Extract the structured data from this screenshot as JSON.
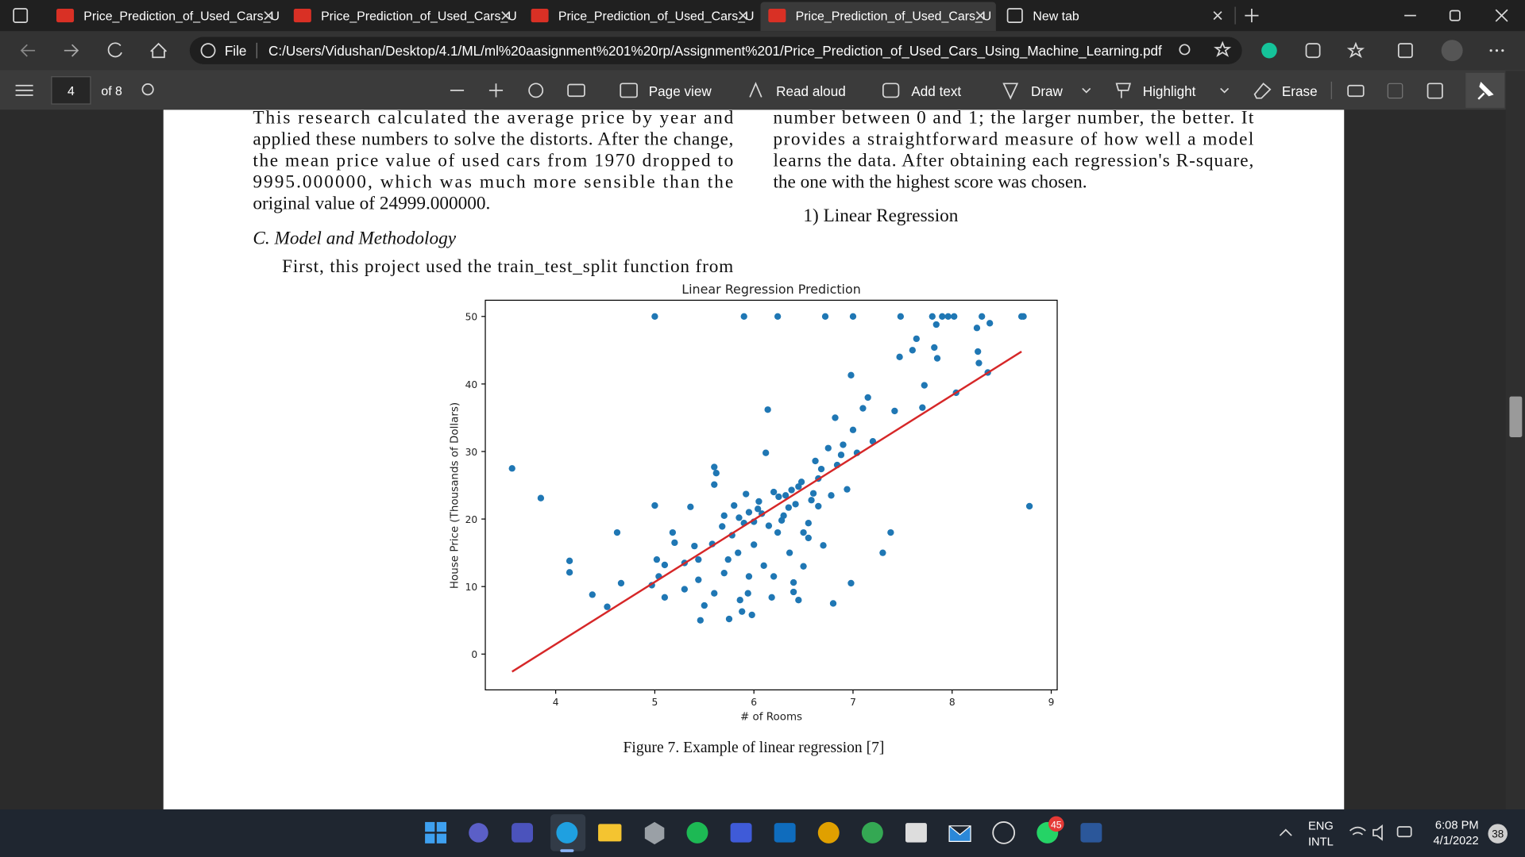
{
  "tabs": [
    {
      "title": "Price_Prediction_of_Used_Cars_U"
    },
    {
      "title": "Price_Prediction_of_Used_Cars_U"
    },
    {
      "title": "Price_Prediction_of_Used_Cars_U"
    },
    {
      "title": "Price_Prediction_of_Used_Cars_U"
    },
    {
      "title": "New tab"
    }
  ],
  "address_bar": {
    "scheme": "File",
    "url": "C:/Users/Vidushan/Desktop/4.1/ML/ml%20aasignment%201%20rp/Assignment%201/Price_Prediction_of_Used_Cars_Using_Machine_Learning.pdf"
  },
  "pdf_toolbar": {
    "page": "4",
    "page_count": "of 8",
    "buttons": [
      "Page view",
      "Read aloud",
      "Add text",
      "Draw",
      "Highlight",
      "Erase"
    ]
  },
  "document": {
    "left_column": {
      "lines": [
        "This research calculated the average price by year and",
        "applied these numbers to solve the distorts. After the change,",
        "the mean price value of used cars from 1970 dropped to",
        "9995.000000, which was much more sensible than the",
        "original value of 24999.000000."
      ],
      "heading": "C. Model and Methodology",
      "paragraph_start": "First, this project used the train_test_split function from"
    },
    "right_column": {
      "lines": [
        "number between 0 and 1; the larger number, the better. It",
        "provides a straightforward measure of how well a model",
        "learns the data. After obtaining each regression's R-square,",
        "the one with the highest score was chosen."
      ],
      "subheading": "1) Linear Regression"
    },
    "figure": {
      "chart": {
        "type": "scatter",
        "title": "Linear Regression Prediction",
        "x_label": "# of Rooms",
        "y_label": "House Price (Thousands of Dollars)",
        "color": "#1f77b4",
        "x": [
          3.56,
          3.85,
          4.14,
          4.14,
          4.37,
          4.52,
          4.62,
          4.66,
          4.97,
          5.0,
          5.04,
          5.02,
          5.1,
          5.0,
          5.1,
          5.2,
          5.18,
          5.3,
          5.3,
          5.4,
          5.44,
          5.36,
          5.44,
          5.5,
          5.46,
          5.58,
          5.6,
          5.62,
          5.6,
          5.6,
          5.68,
          5.7,
          5.7,
          5.74,
          5.75,
          5.8,
          5.84,
          5.86,
          5.88,
          5.9,
          5.9,
          5.92,
          5.94,
          5.95,
          5.98,
          6.0,
          6.0,
          6.04,
          6.1,
          6.12,
          6.14,
          6.18,
          6.2,
          6.2,
          6.24,
          6.24,
          6.3,
          6.32,
          6.36,
          6.4,
          6.4,
          6.42,
          6.45,
          6.48,
          6.5,
          6.5,
          6.55,
          6.6,
          6.62,
          6.65,
          6.7,
          6.72,
          6.75,
          6.78,
          6.8,
          6.82,
          6.84,
          6.9,
          6.94,
          6.98,
          6.98,
          7.0,
          7.0,
          7.04,
          7.1,
          7.15,
          7.2,
          7.3,
          7.38,
          7.42,
          7.48,
          7.47,
          7.6,
          7.64,
          7.7,
          7.72,
          7.8,
          7.82,
          7.84,
          7.85,
          7.9,
          7.96,
          8.02,
          8.04,
          8.25,
          8.26,
          8.27,
          8.3,
          8.36,
          8.38,
          8.7,
          8.72,
          8.78,
          5.85,
          5.95,
          6.05,
          6.15,
          6.25,
          6.35,
          6.45,
          6.55,
          6.65,
          5.78,
          6.08,
          6.28,
          6.38,
          6.58,
          6.68,
          6.88
        ],
        "values": [
          27.5,
          23.1,
          13.8,
          12.1,
          8.8,
          7.0,
          18.0,
          10.5,
          10.2,
          22.0,
          11.5,
          14.0,
          13.2,
          50.0,
          8.4,
          16.5,
          18.0,
          13.5,
          9.6,
          16.0,
          11.0,
          21.8,
          14.0,
          7.2,
          5.0,
          16.3,
          25.1,
          26.8,
          27.7,
          9.0,
          18.9,
          12.0,
          20.5,
          14.0,
          5.2,
          22.0,
          15.0,
          8.0,
          6.3,
          19.4,
          50.0,
          23.7,
          9.0,
          11.5,
          5.8,
          19.6,
          16.2,
          21.5,
          13.1,
          29.8,
          36.2,
          8.4,
          11.5,
          24.0,
          50.0,
          18.0,
          20.5,
          23.5,
          15.0,
          9.2,
          10.6,
          22.2,
          8.0,
          25.5,
          18.0,
          13.0,
          19.4,
          23.8,
          28.6,
          21.9,
          16.1,
          50.0,
          30.5,
          23.5,
          7.5,
          35.0,
          28.0,
          31.0,
          24.4,
          41.3,
          10.5,
          50.0,
          33.2,
          29.8,
          36.4,
          38.0,
          31.5,
          15.0,
          18.0,
          36.0,
          50.0,
          44.0,
          45.0,
          46.7,
          36.5,
          39.8,
          50.0,
          45.4,
          48.8,
          43.8,
          50.0,
          50.0,
          50.0,
          38.7,
          48.3,
          44.8,
          43.1,
          50.0,
          41.7,
          49.0,
          50.0,
          50.0,
          21.9,
          20.2,
          21.0,
          22.6,
          19.0,
          23.3,
          21.7,
          24.8,
          17.2,
          26.0,
          17.6,
          20.8,
          19.8,
          24.3,
          22.8,
          27.4,
          29.5
        ],
        "line": {
          "color": "#d62728",
          "x": [
            3.56,
            8.7
          ],
          "values": [
            -2.6,
            44.8
          ]
        },
        "xlim": [
          3.29,
          9.06
        ],
        "ylim": [
          -5.3,
          52.4
        ],
        "xticks": [
          4,
          5,
          6,
          7,
          8,
          9
        ],
        "yticks": [
          0,
          10,
          20,
          30,
          40,
          50
        ]
      },
      "caption": "Figure 7. Example of linear regression [7]"
    }
  },
  "taskbar": {
    "whatsapp_badge": "45",
    "language": "ENG",
    "layout": "INTL",
    "time": "6:08 PM",
    "date": "4/1/2022",
    "notification_count": "38"
  }
}
